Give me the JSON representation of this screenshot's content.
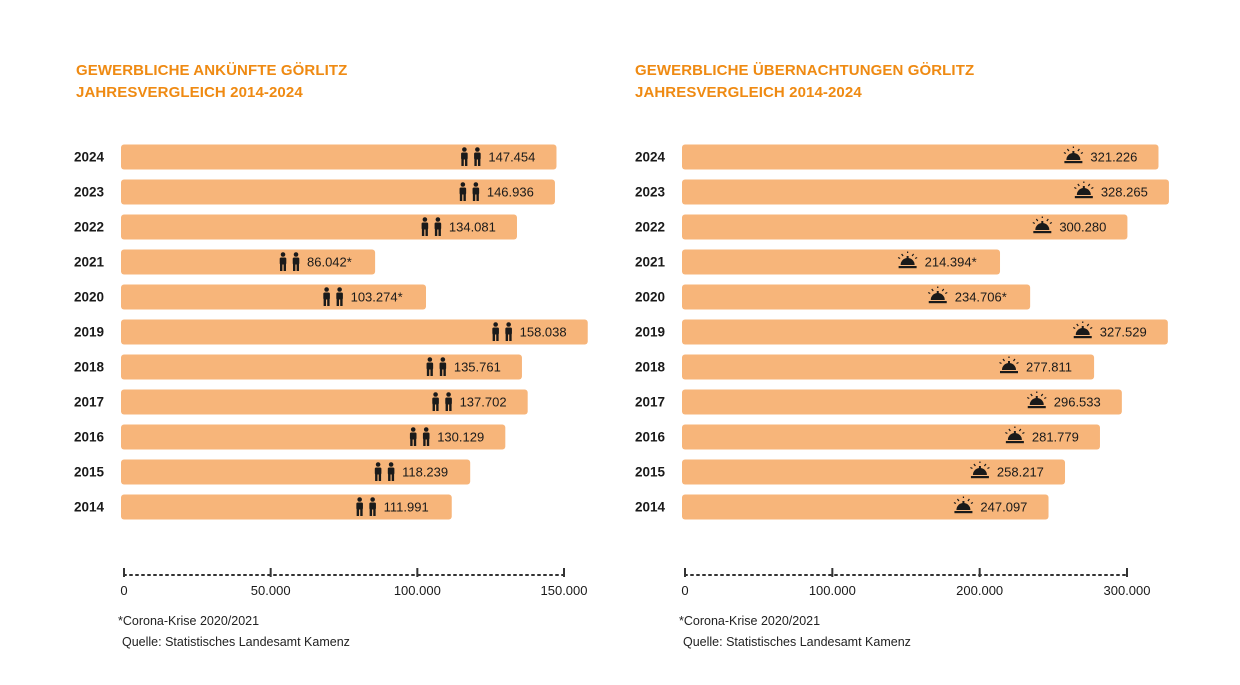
{
  "colors": {
    "bar": "#f7b57a",
    "title": "#ef8a12",
    "text": "#1a1a1a"
  },
  "panels": [
    {
      "title_line1": "GEWERBLICHE ANKÜNFTE GÖRLITZ",
      "title_line2": "JAHRESVERGLEICH 2014-2024",
      "footnote": "*Corona-Krise 2020/2021",
      "source": "Quelle: Statistisches Landesamt Kamenz"
    },
    {
      "title_line1": "GEWERBLICHE ÜBERNACHTUNGEN GÖRLITZ",
      "title_line2": "JAHRESVERGLEICH 2014-2024",
      "footnote": "*Corona-Krise 2020/2021",
      "source": "Quelle: Statistisches Landesamt Kamenz"
    }
  ],
  "chart_data": [
    {
      "type": "bar",
      "orientation": "horizontal",
      "title": "GEWERBLICHE ANKÜNFTE GÖRLITZ JAHRESVERGLEICH 2014-2024",
      "icon": "people-icon",
      "categories": [
        "2024",
        "2023",
        "2022",
        "2021",
        "2020",
        "2019",
        "2018",
        "2017",
        "2016",
        "2015",
        "2014"
      ],
      "values": [
        147454,
        146936,
        134081,
        86042,
        103274,
        158038,
        135761,
        137702,
        130129,
        118239,
        111991
      ],
      "value_labels": [
        "147.454",
        "146.936",
        "134.081",
        "86.042*",
        "103.274*",
        "158.038",
        "135.761",
        "137.702",
        "130.129",
        "118.239",
        "111.991"
      ],
      "xlim": [
        0,
        150000
      ],
      "x_ticks": [
        0,
        50000,
        100000,
        150000
      ],
      "x_tick_labels": [
        "0",
        "50.000",
        "100.000",
        "150.000"
      ],
      "grid": false
    },
    {
      "type": "bar",
      "orientation": "horizontal",
      "title": "GEWERBLICHE ÜBERNACHTUNGEN GÖRLITZ JAHRESVERGLEICH 2014-2024",
      "icon": "hotel-bell-icon",
      "categories": [
        "2024",
        "2023",
        "2022",
        "2021",
        "2020",
        "2019",
        "2018",
        "2017",
        "2016",
        "2015",
        "2014"
      ],
      "values": [
        321226,
        328265,
        300280,
        214394,
        234706,
        327529,
        277811,
        296533,
        281779,
        258217,
        247097
      ],
      "value_labels": [
        "321.226",
        "328.265",
        "300.280",
        "214.394*",
        "234.706*",
        "327.529",
        "277.811",
        "296.533",
        "281.779",
        "258.217",
        "247.097"
      ],
      "xlim": [
        0,
        300000
      ],
      "x_ticks": [
        0,
        100000,
        200000,
        300000
      ],
      "x_tick_labels": [
        "0",
        "100.000",
        "200.000",
        "300.000"
      ],
      "grid": false
    }
  ]
}
